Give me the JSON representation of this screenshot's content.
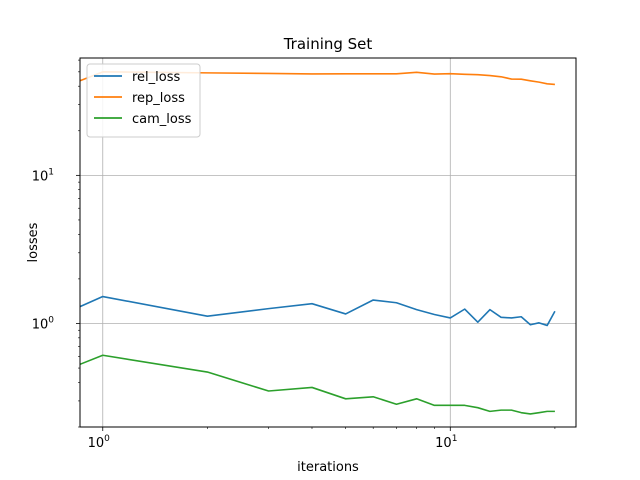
{
  "chart_data": {
    "type": "line",
    "title": "Training Set",
    "xlabel": "iterations",
    "ylabel": "losses",
    "xscale": "log",
    "yscale": "log",
    "xlim": [
      0.86,
      23
    ],
    "ylim": [
      0.2,
      62
    ],
    "grid": true,
    "legend_position": "top-left",
    "x": [
      0.86,
      1,
      2,
      3,
      4,
      5,
      6,
      7,
      8,
      9,
      10,
      11,
      12,
      13,
      14,
      15,
      16,
      17,
      18,
      19,
      20
    ],
    "x_ticks": [
      {
        "value": 1,
        "base": "10",
        "exp": "0"
      },
      {
        "value": 10,
        "base": "10",
        "exp": "1"
      }
    ],
    "y_ticks": [
      {
        "value": 1,
        "base": "10",
        "exp": "0"
      },
      {
        "value": 10,
        "base": "10",
        "exp": "1"
      }
    ],
    "series": [
      {
        "name": "rel_loss",
        "color": "#1f77b4",
        "values": [
          1.3,
          1.52,
          1.12,
          1.26,
          1.36,
          1.16,
          1.44,
          1.38,
          1.24,
          1.15,
          1.09,
          1.25,
          1.02,
          1.24,
          1.1,
          1.09,
          1.11,
          0.98,
          1.01,
          0.97,
          1.21
        ]
      },
      {
        "name": "rep_loss",
        "color": "#ff7f0e",
        "values": [
          43.5,
          50.0,
          49.2,
          48.8,
          48.4,
          48.5,
          48.5,
          48.5,
          49.6,
          48.3,
          48.6,
          48.1,
          47.8,
          47.2,
          46.3,
          44.7,
          44.6,
          43.5,
          42.6,
          41.5,
          41.1
        ]
      },
      {
        "name": "cam_loss",
        "color": "#2ca02c",
        "values": [
          0.53,
          0.61,
          0.47,
          0.35,
          0.37,
          0.31,
          0.32,
          0.285,
          0.31,
          0.28,
          0.28,
          0.28,
          0.27,
          0.255,
          0.26,
          0.26,
          0.25,
          0.245,
          0.25,
          0.255,
          0.255
        ]
      }
    ]
  }
}
